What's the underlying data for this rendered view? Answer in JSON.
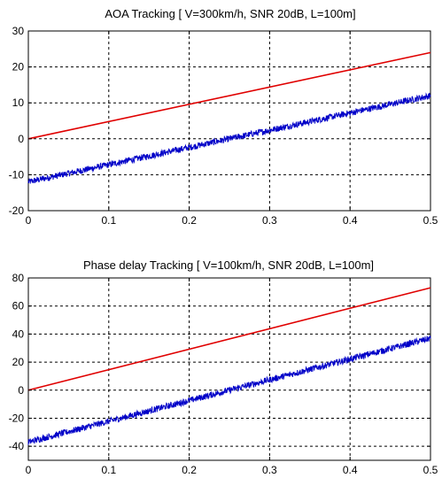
{
  "chart_data": [
    {
      "type": "line",
      "title": "AOA Tracking [ V=300km/h, SNR 20dB, L=100m]",
      "xlabel": "",
      "ylabel": "",
      "xlim": [
        0,
        0.5
      ],
      "ylim": [
        -20,
        30
      ],
      "xticks": [
        0,
        0.1,
        0.2,
        0.3,
        0.4,
        0.5
      ],
      "xtick_labels": [
        "0",
        "0.1",
        "0.2",
        "0.3",
        "0.4",
        "0.5"
      ],
      "yticks": [
        -20,
        -10,
        0,
        10,
        20,
        30
      ],
      "ytick_labels": [
        "-20",
        "-10",
        "0",
        "10",
        "20",
        "30"
      ],
      "grid": true,
      "series": [
        {
          "color": "#e00000",
          "noisy": false,
          "x": [
            0,
            0.5
          ],
          "y": [
            0,
            24
          ]
        },
        {
          "color": "#0000c8",
          "noisy": true,
          "noise_amplitude": 0.9,
          "x": [
            0,
            0.5
          ],
          "y": [
            -12,
            12
          ]
        }
      ]
    },
    {
      "type": "line",
      "title": "Phase delay Tracking  [ V=100km/h, SNR 20dB, L=100m]",
      "xlabel": "",
      "ylabel": "",
      "xlim": [
        0,
        0.5
      ],
      "ylim": [
        -50,
        80
      ],
      "xticks": [
        0,
        0.1,
        0.2,
        0.3,
        0.4,
        0.5
      ],
      "xtick_labels": [
        "0",
        "0.1",
        "0.2",
        "0.3",
        "0.4",
        "0.5"
      ],
      "yticks": [
        -40,
        -20,
        0,
        20,
        40,
        60,
        80
      ],
      "ytick_labels": [
        "-40",
        "-20",
        "0",
        "20",
        "40",
        "60",
        "80"
      ],
      "grid": true,
      "series": [
        {
          "color": "#e00000",
          "noisy": false,
          "x": [
            0,
            0.5
          ],
          "y": [
            0,
            73
          ]
        },
        {
          "color": "#0000c8",
          "noisy": true,
          "noise_amplitude": 2.3,
          "x": [
            0,
            0.5
          ],
          "y": [
            -37,
            37
          ]
        }
      ]
    }
  ]
}
